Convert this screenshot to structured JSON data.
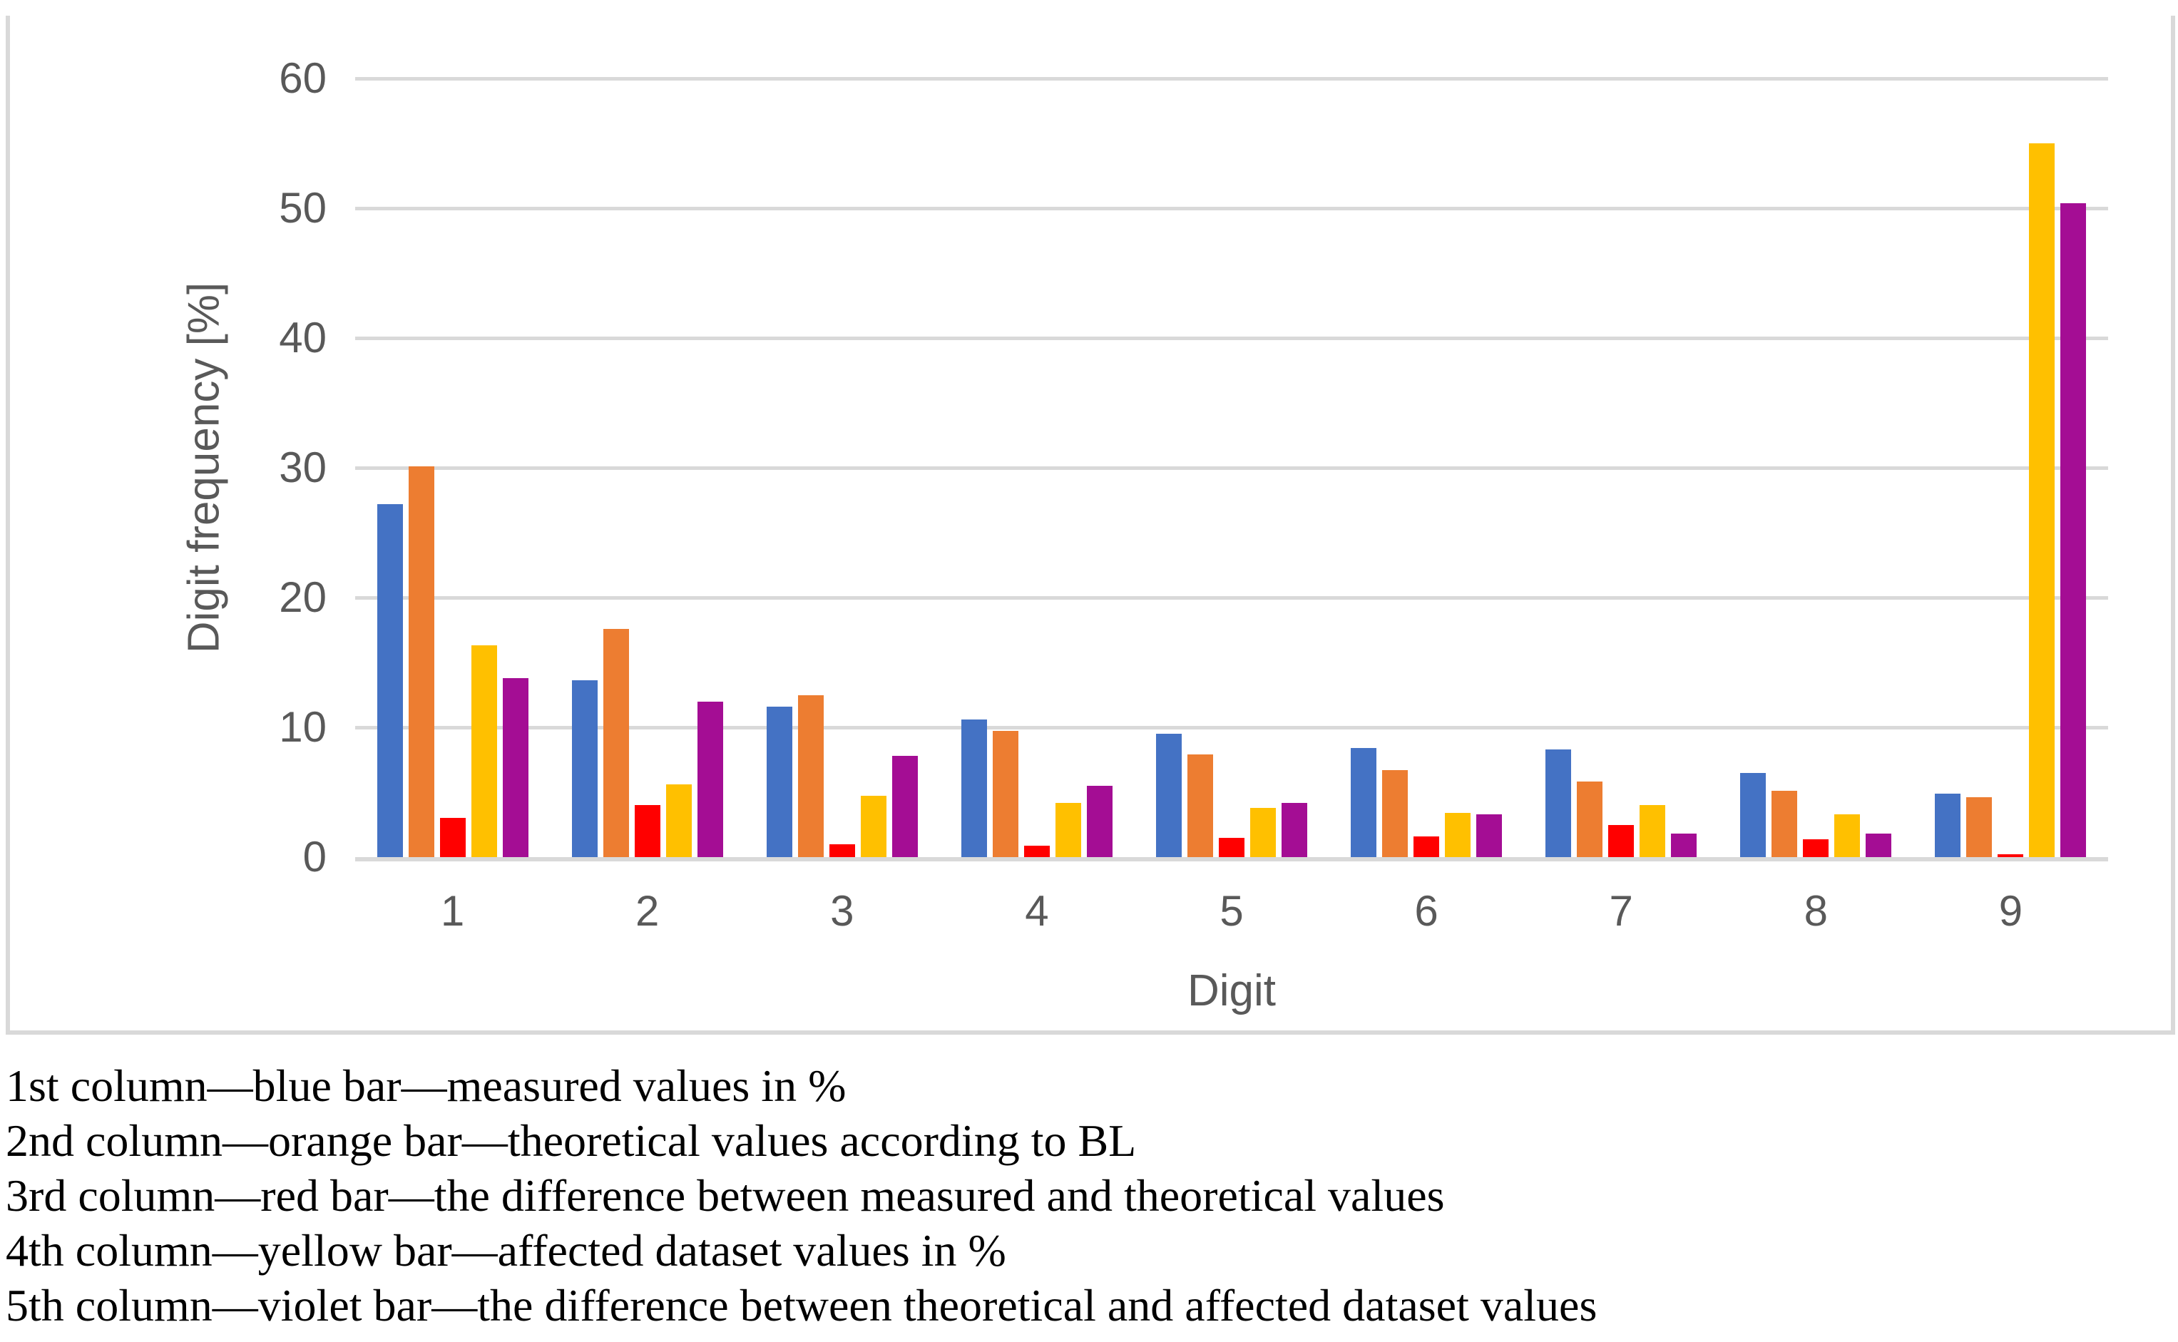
{
  "chart_data": {
    "type": "bar",
    "title": "",
    "xlabel": "Digit",
    "ylabel": "Digit frequency [%]",
    "ylim": [
      0,
      60
    ],
    "yticks": [
      0,
      10,
      20,
      30,
      40,
      50,
      60
    ],
    "grid": true,
    "legend_position": "none",
    "categories": [
      "1",
      "2",
      "3",
      "4",
      "5",
      "6",
      "7",
      "8",
      "9"
    ],
    "series": [
      {
        "key": "measured",
        "name": "measured values in %",
        "color": "#4472C4",
        "values": [
          27.2,
          13.6,
          11.6,
          10.6,
          9.5,
          8.4,
          8.3,
          6.5,
          4.9
        ]
      },
      {
        "key": "theoretical",
        "name": "theoretical values according to BL",
        "color": "#ED7D31",
        "values": [
          30.1,
          17.6,
          12.5,
          9.7,
          7.9,
          6.7,
          5.8,
          5.1,
          4.6
        ]
      },
      {
        "key": "diff-measured-theoretical",
        "name": "the difference between measured and theoretical values",
        "color": "#FF0000",
        "values": [
          3.0,
          4.0,
          1.0,
          0.9,
          1.5,
          1.6,
          2.5,
          1.4,
          0.2
        ]
      },
      {
        "key": "affected",
        "name": "affected dataset values in %",
        "color": "#FFC000",
        "values": [
          16.3,
          5.6,
          4.7,
          4.2,
          3.8,
          3.4,
          4.0,
          3.3,
          55.0
        ]
      },
      {
        "key": "diff-theoretical-affected",
        "name": "the difference between theoretical and affected dataset values",
        "color": "#A40D94",
        "values": [
          13.8,
          12.0,
          7.8,
          5.5,
          4.2,
          3.3,
          1.8,
          1.8,
          50.4
        ]
      }
    ]
  },
  "axes": {
    "y_title": "Digit frequency [%]",
    "x_title": "Digit"
  },
  "caption": {
    "lines": [
      "1st column—blue bar—measured values in %",
      "2nd column—orange bar—theoretical values according to BL",
      "3rd column—red bar—the difference between measured and theoretical values",
      "4th column—yellow bar—affected dataset values in %",
      "5th column—violet bar—the difference between theoretical and affected dataset values"
    ]
  },
  "colors": {
    "gridline": "#D9D9D9",
    "frame": "#D9D9D9",
    "axis_text": "#595959",
    "caption_text": "#000000"
  }
}
